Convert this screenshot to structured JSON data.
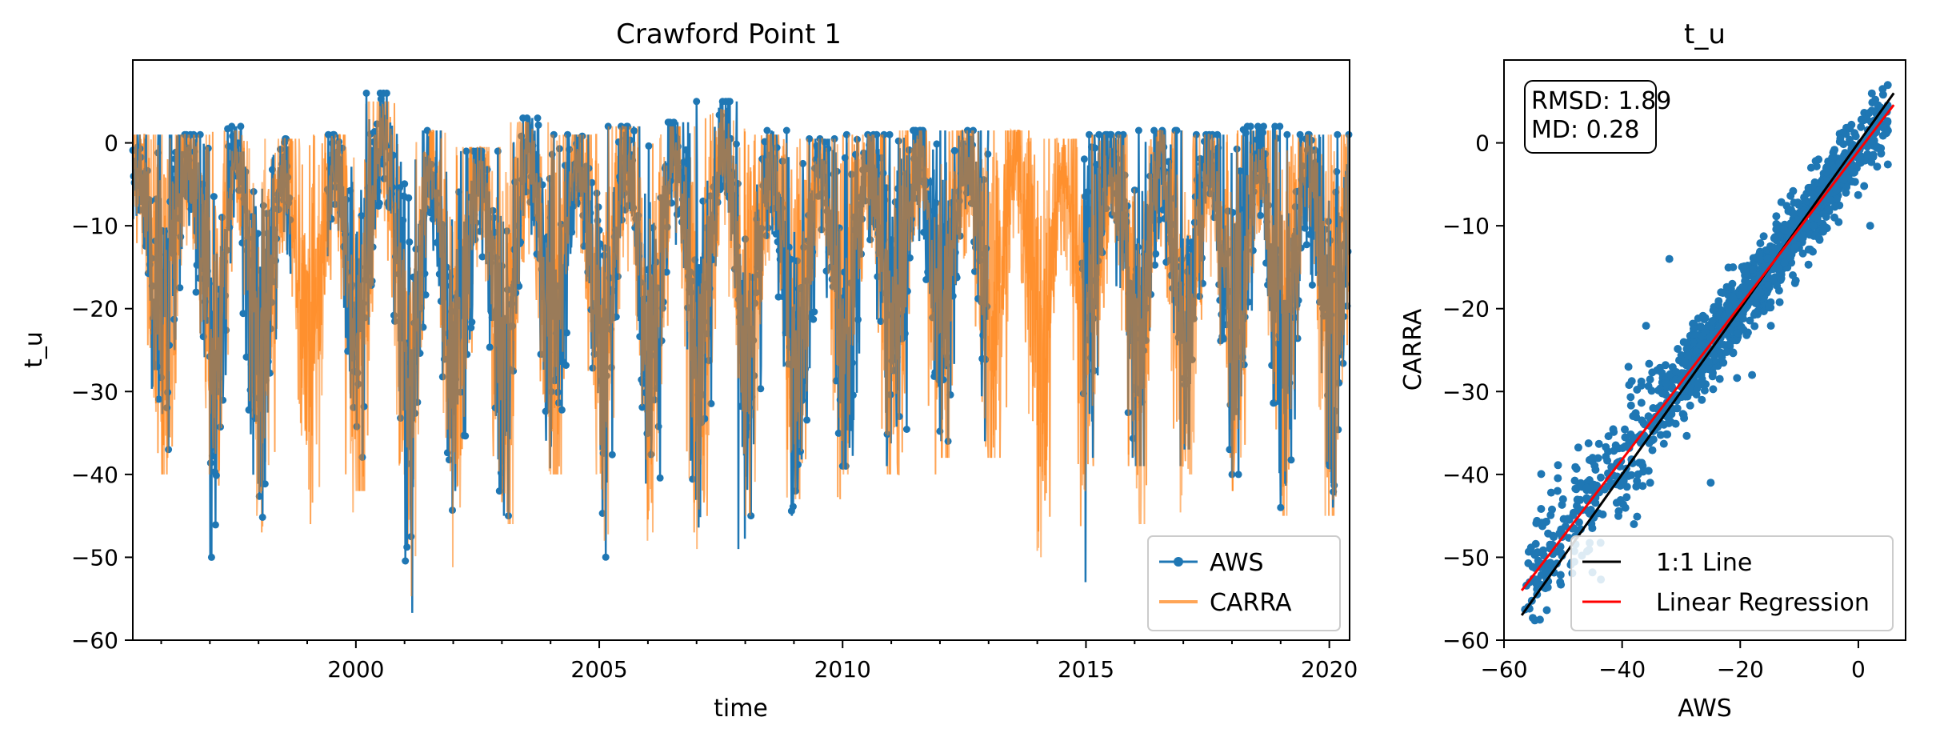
{
  "chart_data": [
    {
      "type": "line",
      "title": "Crawford Point 1",
      "xlabel": "time",
      "ylabel": "t_u",
      "xlim": [
        "1995-06",
        "2020-06"
      ],
      "ylim": [
        -60,
        10
      ],
      "x_ticks": [
        2000,
        2005,
        2010,
        2015,
        2020
      ],
      "y_ticks": [
        0,
        -10,
        -20,
        -30,
        -40,
        -50,
        -60
      ],
      "legend": {
        "position": "lower-right",
        "entries": [
          "AWS",
          "CARRA"
        ]
      },
      "series": [
        {
          "name": "AWS",
          "color": "#1f77b4",
          "marker": "circle",
          "coverage": [
            [
              "1995-06",
              "1998-09"
            ],
            [
              "1999-06",
              "2013-01"
            ],
            [
              "2014-12",
              "2020-06"
            ]
          ],
          "winter_minima": [
            -37,
            -50,
            -49,
            -47,
            -41,
            -57,
            -42,
            -45,
            -38,
            -51,
            -47,
            -49,
            -45,
            -42,
            -39,
            -38,
            -36,
            -37,
            -53,
            -38,
            -39,
            -37,
            -40,
            -44
          ],
          "summer_maxima": [
            1,
            2,
            0.5,
            1,
            6,
            1.5,
            -1,
            3,
            1,
            2,
            2.5,
            5,
            1.5,
            0.5,
            1,
            1.5,
            1.5,
            2,
            0.5,
            1,
            1.5,
            1,
            2,
            1
          ]
        },
        {
          "name": "CARRA",
          "color": "#ff7f0e",
          "opacity": 0.7,
          "coverage": [
            [
              "1995-06",
              "2020-06"
            ]
          ],
          "winter_minima": [
            -40,
            -45,
            -47,
            -46,
            -42,
            -55,
            -44,
            -46,
            -40,
            -48,
            -47,
            -49,
            -45,
            -43,
            -40,
            -40,
            -38,
            -38,
            -50,
            -39,
            -46,
            -40,
            -42,
            -45
          ],
          "summer_maxima": [
            1,
            1.5,
            0.5,
            1,
            5,
            1.5,
            -0.5,
            2.5,
            1,
            2,
            2,
            4,
            1,
            0.5,
            1,
            1.5,
            1.5,
            1.5,
            0.5,
            1,
            1.5,
            1,
            1.5,
            1
          ]
        }
      ]
    },
    {
      "type": "scatter",
      "title": "t_u",
      "xlabel": "AWS",
      "ylabel": "CARRA",
      "xlim": [
        -60,
        8
      ],
      "ylim": [
        -60,
        10
      ],
      "x_ticks": [
        -60,
        -40,
        -20,
        0
      ],
      "y_ticks": [
        0,
        -10,
        -20,
        -30,
        -40,
        -50,
        -60
      ],
      "scatter_color": "#1f77b4",
      "annotation": {
        "rmsd": "RMSD: 1.89",
        "md": "MD: 0.28"
      },
      "lines": [
        {
          "name": "1:1 Line",
          "color": "#000000",
          "slope": 1,
          "intercept": 0,
          "x_range": [
            -57,
            6
          ]
        },
        {
          "name": "Linear Regression",
          "color": "#ff0000",
          "slope": 0.93,
          "intercept": -1.0,
          "x_range": [
            -57,
            6
          ]
        }
      ],
      "legend": {
        "position": "lower-right",
        "entries": [
          "1:1 Line",
          "Linear Regression"
        ]
      }
    }
  ]
}
